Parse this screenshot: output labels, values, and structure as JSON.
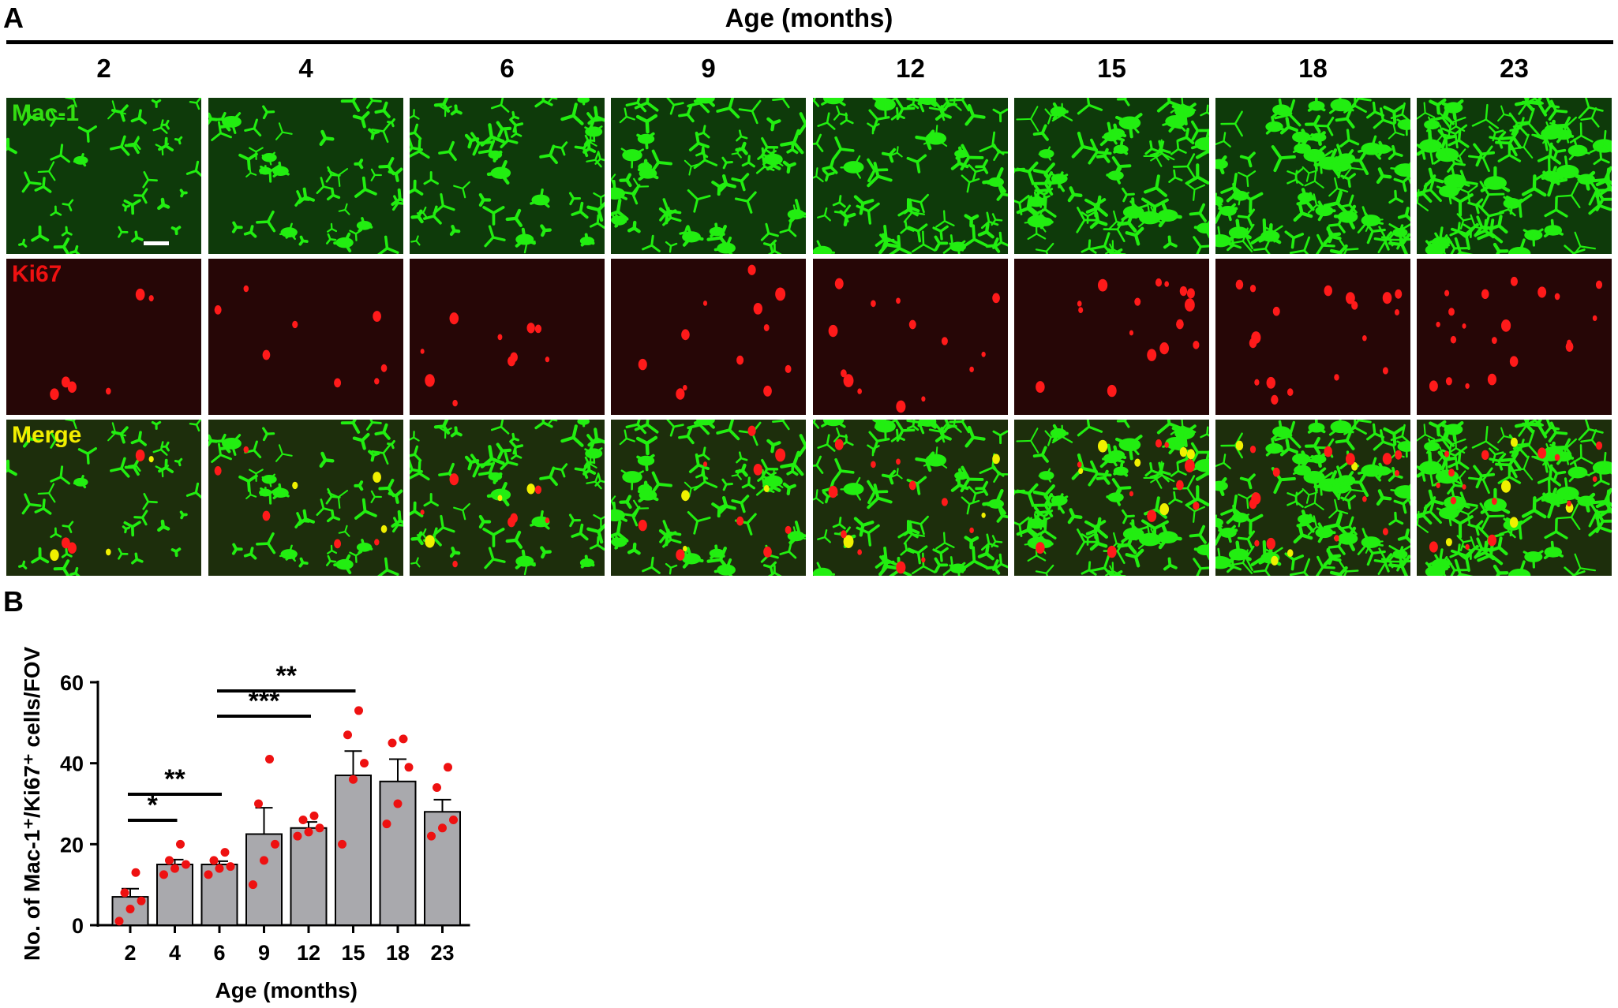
{
  "panel_a": {
    "letter": "A",
    "header": "Age (months)",
    "ages": [
      "2",
      "4",
      "6",
      "9",
      "12",
      "15",
      "18",
      "23"
    ],
    "rows": [
      {
        "label": "Mac-1",
        "label_color": "#33dd11",
        "channel": "green"
      },
      {
        "label": "Ki67",
        "label_color": "#ee1111",
        "channel": "red"
      },
      {
        "label": "Merge",
        "label_color": "#f2ee00",
        "channel": "merge"
      }
    ],
    "colors": {
      "mac1": "#22ee11",
      "ki67": "#ff1a1a",
      "colocalized": "#f0f000",
      "green_bg": "#0e3a0a",
      "red_bg": "#260606",
      "merge_bg": "#1d2e0c"
    }
  },
  "panel_b": {
    "letter": "B",
    "chart_data": {
      "type": "bar",
      "categories": [
        "2",
        "4",
        "6",
        "9",
        "12",
        "15",
        "18",
        "23"
      ],
      "values": [
        7,
        15,
        15,
        22.5,
        24,
        37,
        35.5,
        28
      ],
      "sem": [
        2,
        1.2,
        0.8,
        6.5,
        1.5,
        6,
        5.5,
        3
      ],
      "points": [
        [
          1,
          4,
          6,
          8,
          13
        ],
        [
          12.5,
          14,
          15,
          16,
          20
        ],
        [
          12.5,
          14,
          14.5,
          16,
          18
        ],
        [
          10,
          16,
          20,
          30,
          41
        ],
        [
          22,
          23,
          24,
          26,
          27
        ],
        [
          20,
          36,
          40,
          47,
          53
        ],
        [
          25,
          30,
          39,
          45,
          46
        ],
        [
          22,
          24,
          26,
          34,
          39
        ]
      ],
      "xlabel": "Age (months)",
      "ylabel": "No. of Mac-1⁺/Ki67⁺ cells/FOV",
      "ylim": [
        0,
        60
      ],
      "yticks": [
        "0",
        "20",
        "40",
        "60"
      ],
      "bar_color": "#a9a9ad",
      "point_color": "#ee1111",
      "significance": [
        {
          "from": "2",
          "to": "4",
          "label": "*"
        },
        {
          "from": "2",
          "to": "6",
          "label": "**"
        },
        {
          "from": "6",
          "to": "12",
          "label": "***"
        },
        {
          "from": "6",
          "to": "15",
          "label": "**"
        }
      ]
    }
  }
}
